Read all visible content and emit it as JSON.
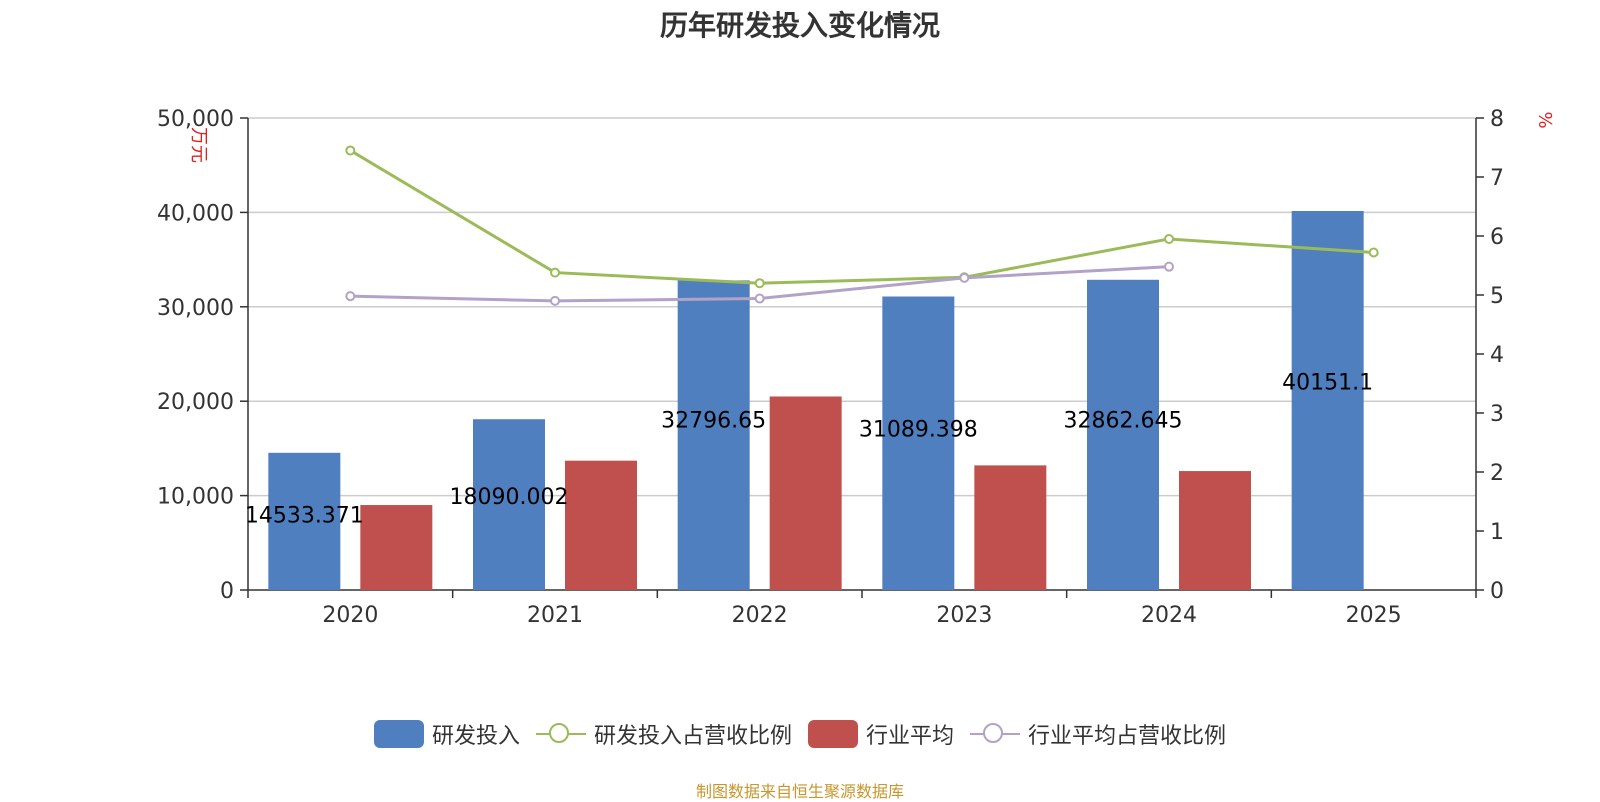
{
  "chart_data": {
    "type": "bar",
    "title": "历年研发投入变化情况",
    "categories": [
      "2020",
      "2021",
      "2022",
      "2023",
      "2024",
      "2025"
    ],
    "y_left": {
      "label": "万元",
      "range": [
        0,
        50000
      ],
      "ticks": [
        "0",
        "10,000",
        "20,000",
        "30,000",
        "40,000",
        "50,000"
      ]
    },
    "y_right": {
      "label": "%",
      "range": [
        0,
        8
      ],
      "ticks": [
        "0",
        "1",
        "2",
        "3",
        "4",
        "5",
        "6",
        "7",
        "8"
      ]
    },
    "grid": true,
    "legend_position": "bottom",
    "series": [
      {
        "name": "研发投入",
        "type": "bar",
        "axis": "left",
        "color": "#4f7fbe",
        "values": [
          14533.371,
          18090.002,
          32796.65,
          31089.398,
          32862.645,
          40151.1
        ],
        "labels": [
          "14533.371",
          "18090.002",
          "32796.65",
          "31089.398",
          "32862.645",
          "40151.1"
        ]
      },
      {
        "name": "研发投入占营收比例",
        "type": "line",
        "axis": "right",
        "color": "#9bbb59",
        "values": [
          7.45,
          5.38,
          5.2,
          5.3,
          5.95,
          5.72
        ]
      },
      {
        "name": "行业平均",
        "type": "bar",
        "axis": "left",
        "color": "#c0504d",
        "values": [
          9000,
          13700,
          20500,
          13200,
          12600,
          null
        ]
      },
      {
        "name": "行业平均占营收比例",
        "type": "line",
        "axis": "right",
        "color": "#b3a2c7",
        "values": [
          4.98,
          4.9,
          4.94,
          5.29,
          5.48,
          null
        ]
      }
    ]
  },
  "source": "制图数据来自恒生聚源数据库"
}
